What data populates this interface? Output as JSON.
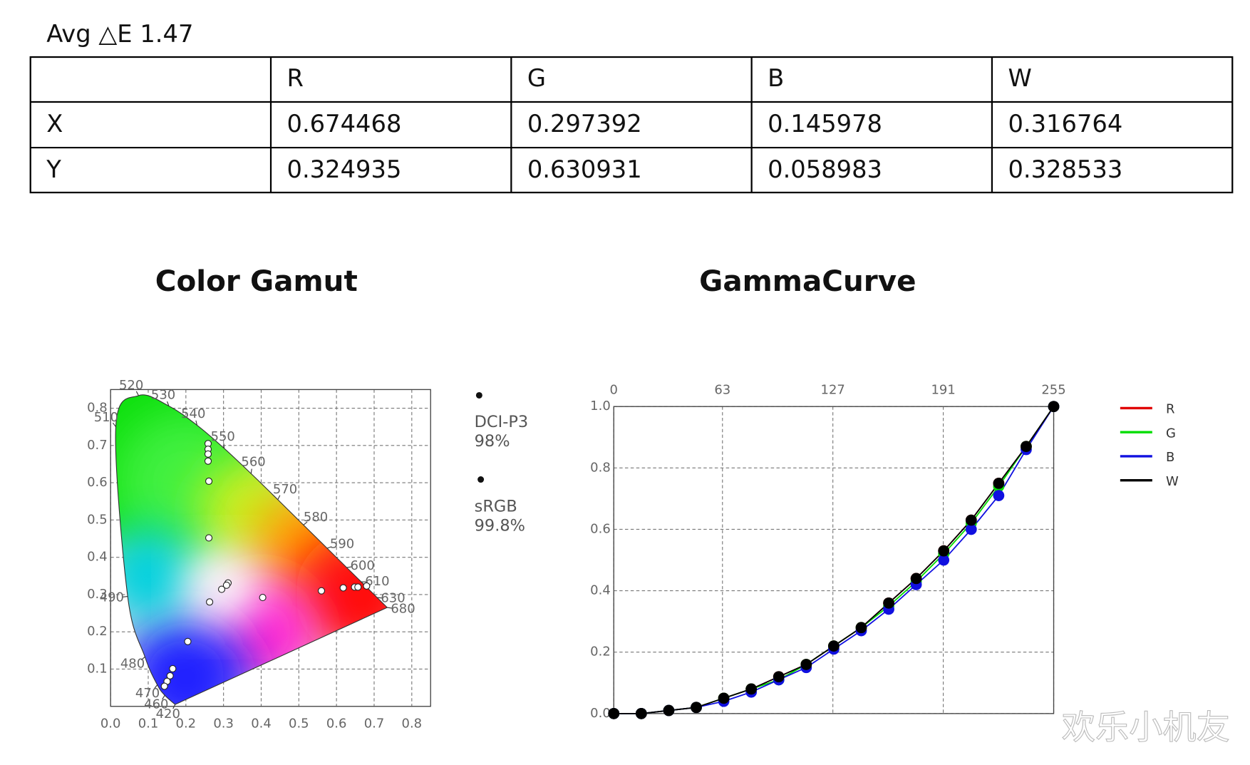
{
  "header": {
    "title": "Avg △E 1.47"
  },
  "table": {
    "columns": [
      "R",
      "G",
      "B",
      "W"
    ],
    "rows": [
      {
        "label": "X",
        "cells": [
          "0.674468",
          "0.297392",
          "0.145978",
          "0.316764"
        ]
      },
      {
        "label": "Y",
        "cells": [
          "0.324935",
          "0.630931",
          "0.058983",
          "0.328533"
        ]
      }
    ]
  },
  "chart_data": [
    {
      "type": "scatter",
      "title": "Color Gamut",
      "x": [
        0.259,
        0.259,
        0.259,
        0.259,
        0.261,
        0.261,
        0.312,
        0.308,
        0.295,
        0.263,
        0.404,
        0.56,
        0.618,
        0.648,
        0.657,
        0.68,
        0.205,
        0.165,
        0.158,
        0.15,
        0.143
      ],
      "y": [
        0.705,
        0.69,
        0.677,
        0.658,
        0.604,
        0.452,
        0.331,
        0.325,
        0.314,
        0.28,
        0.292,
        0.31,
        0.318,
        0.32,
        0.32,
        0.323,
        0.174,
        0.101,
        0.082,
        0.067,
        0.054
      ],
      "wavelengths": {
        "labels": [
          420,
          460,
          470,
          480,
          490,
          510,
          520,
          530,
          540,
          550,
          560,
          570,
          580,
          590,
          600,
          610,
          630,
          680
        ],
        "x": [
          0.1714,
          0.144,
          0.1241,
          0.0913,
          0.0454,
          0.0139,
          0.0743,
          0.1547,
          0.2296,
          0.3016,
          0.3731,
          0.4441,
          0.5125,
          0.5752,
          0.627,
          0.6658,
          0.7079,
          0.7347
        ],
        "y": [
          0.0051,
          0.0297,
          0.0578,
          0.1327,
          0.295,
          0.7502,
          0.8338,
          0.8059,
          0.7543,
          0.6923,
          0.6245,
          0.5547,
          0.4866,
          0.4242,
          0.3725,
          0.334,
          0.292,
          0.2653
        ]
      },
      "notes": [
        {
          "name": "DCI-P3",
          "label": "98%"
        },
        {
          "name": "sRGB",
          "label": "99.8%"
        }
      ],
      "xlim": [
        0,
        0.85
      ],
      "ylim": [
        0,
        0.85
      ],
      "xticks": [
        {
          "value": 0,
          "label": "0.0"
        },
        0.1,
        0.2,
        0.3,
        0.4,
        0.5,
        0.6,
        0.7,
        0.8
      ],
      "yticks": [
        0.1,
        0.2,
        0.3,
        0.4,
        0.5,
        0.6,
        0.7,
        0.8
      ],
      "grid": true
    },
    {
      "type": "line",
      "title": "GammaCurve",
      "x": [
        0,
        15.94,
        31.88,
        47.81,
        63.75,
        79.69,
        95.63,
        111.56,
        127.5,
        143.44,
        159.38,
        175.31,
        191.25,
        207.19,
        223.13,
        239.06,
        255
      ],
      "series": [
        {
          "name": "R",
          "color": "#e00000",
          "values": [
            0,
            0,
            0.01,
            0.02,
            0.05,
            0.08,
            0.12,
            0.16,
            0.22,
            0.28,
            0.36,
            0.44,
            0.53,
            0.63,
            0.75,
            0.87,
            1.0
          ]
        },
        {
          "name": "G",
          "color": "#00dd00",
          "values": [
            0,
            0,
            0.01,
            0.02,
            0.05,
            0.08,
            0.11,
            0.16,
            0.22,
            0.28,
            0.35,
            0.43,
            0.52,
            0.62,
            0.74,
            0.87,
            1.0
          ]
        },
        {
          "name": "B",
          "color": "#1010e0",
          "values": [
            0,
            0,
            0.01,
            0.02,
            0.04,
            0.07,
            0.11,
            0.15,
            0.21,
            0.27,
            0.34,
            0.42,
            0.5,
            0.6,
            0.71,
            0.86,
            1.0
          ]
        },
        {
          "name": "W",
          "color": "#000000",
          "values": [
            0,
            0,
            0.01,
            0.02,
            0.05,
            0.08,
            0.12,
            0.16,
            0.22,
            0.28,
            0.36,
            0.44,
            0.53,
            0.63,
            0.75,
            0.87,
            1.0
          ]
        }
      ],
      "xlim": [
        0,
        255
      ],
      "ylim": [
        0,
        1
      ],
      "xticks": [
        0,
        63,
        127,
        191,
        255
      ],
      "yticks": [
        {
          "value": 0,
          "label": "0.0"
        },
        0.2,
        0.4,
        0.6,
        0.8,
        {
          "value": 1,
          "label": "1.0"
        }
      ],
      "grid": true
    }
  ],
  "watermark": "欢乐小机友"
}
